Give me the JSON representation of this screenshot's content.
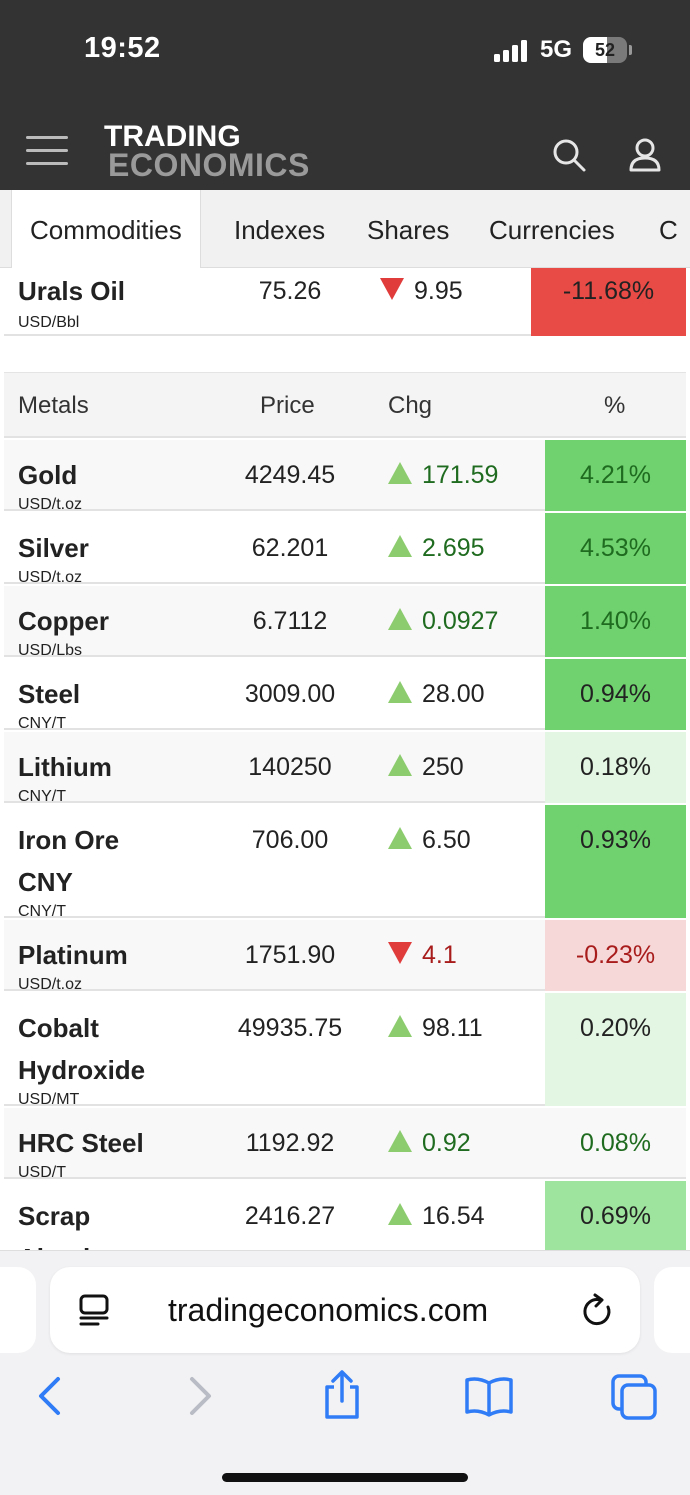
{
  "status_bar": {
    "time": "19:52",
    "network": "5G",
    "battery": "52"
  },
  "header": {
    "logo_line1": "TRADING",
    "logo_line2": "ECONOMICS"
  },
  "tabs": [
    "Commodities",
    "Indexes",
    "Shares",
    "Currencies",
    "C"
  ],
  "active_tab": "Commodities",
  "partial_row": {
    "name": "Urals Oil",
    "unit": "USD/Bbl",
    "price": "75.26",
    "chg": "9.95",
    "dir": "down",
    "pct": "-11.68%"
  },
  "metals": {
    "headers": {
      "name": "Metals",
      "price": "Price",
      "chg": "Chg",
      "pct": "%"
    },
    "rows": [
      {
        "name": "Gold",
        "unit": "USD/t.oz",
        "price": "4249.45",
        "chg": "171.59",
        "dir": "up",
        "pct": "4.21%"
      },
      {
        "name": "Silver",
        "unit": "USD/t.oz",
        "price": "62.201",
        "chg": "2.695",
        "dir": "up",
        "pct": "4.53%"
      },
      {
        "name": "Copper",
        "unit": "USD/Lbs",
        "price": "6.7112",
        "chg": "0.0927",
        "dir": "up",
        "pct": "1.40%"
      },
      {
        "name": "Steel",
        "unit": "CNY/T",
        "price": "3009.00",
        "chg": "28.00",
        "dir": "up",
        "pct": "0.94%"
      },
      {
        "name": "Lithium",
        "unit": "CNY/T",
        "price": "140250",
        "chg": "250",
        "dir": "up",
        "pct": "0.18%"
      },
      {
        "name": "Iron Ore CNY",
        "unit": "CNY/T",
        "price": "706.00",
        "chg": "6.50",
        "dir": "up",
        "pct": "0.93%"
      },
      {
        "name": "Platinum",
        "unit": "USD/t.oz",
        "price": "1751.90",
        "chg": "4.1",
        "dir": "down",
        "pct": "-0.23%"
      },
      {
        "name": "Cobalt Hydroxide",
        "unit": "USD/MT",
        "price": "49935.75",
        "chg": "98.11",
        "dir": "up",
        "pct": "0.20%"
      },
      {
        "name": "HRC Steel",
        "unit": "USD/T",
        "price": "1192.92",
        "chg": "0.92",
        "dir": "up",
        "pct": "0.08%"
      },
      {
        "name": "Scrap Aluminum",
        "unit": "",
        "price": "2416.27",
        "chg": "16.54",
        "dir": "up",
        "pct": "0.69%"
      }
    ]
  },
  "browser": {
    "url": "tradingeconomics.com"
  },
  "colors": {
    "up_strong": "#6fd26f",
    "up_mid": "#9ee39e",
    "up_light": "#e3f6e3",
    "down_strong": "#e84a45",
    "down_light": "#f7d8d8",
    "up_text": "#1f6b1f",
    "down_text": "#a81c1c",
    "accent_blue": "#2f7cf6"
  }
}
